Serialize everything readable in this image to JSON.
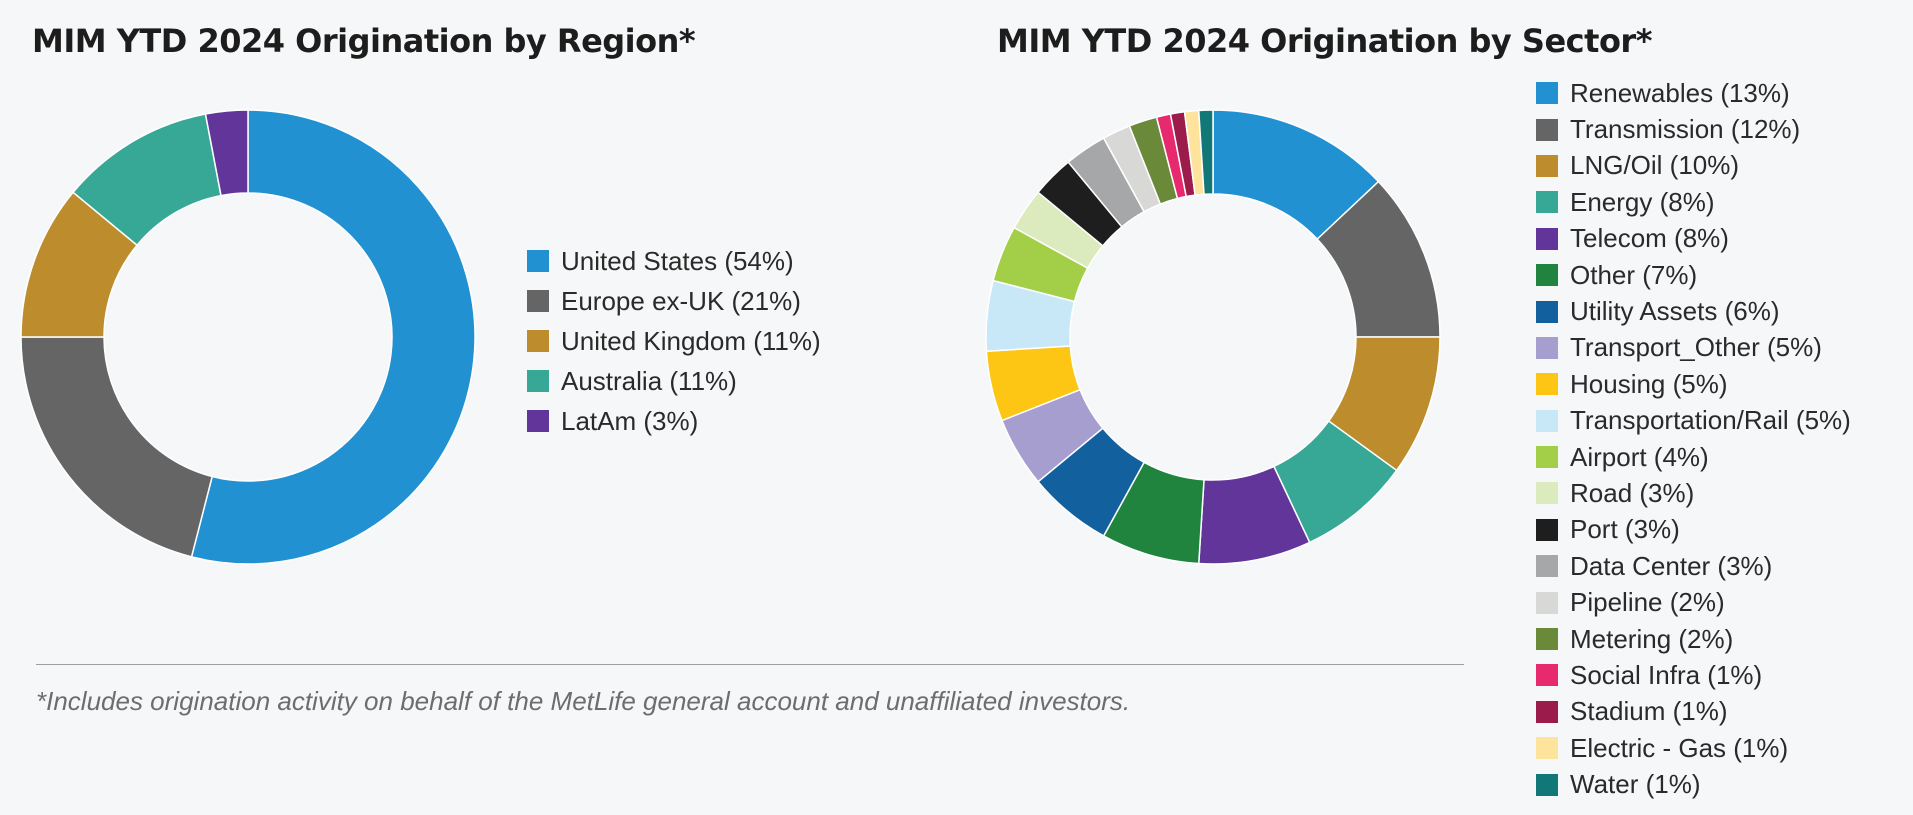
{
  "chart_data": [
    {
      "type": "pie",
      "variant": "donut",
      "title": "MIM YTD 2024 Origination by Region*",
      "legend_position": "right",
      "slices": [
        {
          "label": "United States (54%)",
          "value": 54,
          "color": "#2291d2"
        },
        {
          "label": "Europe ex-UK (21%)",
          "value": 21,
          "color": "#646564"
        },
        {
          "label": "United Kingdom (11%)",
          "value": 11,
          "color": "#bd8c2d"
        },
        {
          "label": "Australia (11%)",
          "value": 11,
          "color": "#37a896"
        },
        {
          "label": "LatAm (3%)",
          "value": 3,
          "color": "#62359a"
        }
      ]
    },
    {
      "type": "pie",
      "variant": "donut",
      "title": "MIM YTD 2024 Origination by Sector*",
      "legend_position": "right",
      "slices": [
        {
          "label": "Renewables (13%)",
          "value": 13,
          "color": "#2291d2"
        },
        {
          "label": "Transmission (12%)",
          "value": 12,
          "color": "#646564"
        },
        {
          "label": "LNG/Oil (10%)",
          "value": 10,
          "color": "#bd8c2d"
        },
        {
          "label": "Energy (8%)",
          "value": 8,
          "color": "#37a896"
        },
        {
          "label": "Telecom (8%)",
          "value": 8,
          "color": "#62359a"
        },
        {
          "label": "Other (7%)",
          "value": 7,
          "color": "#20843f"
        },
        {
          "label": "Utility Assets (6%)",
          "value": 6,
          "color": "#13609f"
        },
        {
          "label": "Transport_Other (5%)",
          "value": 5,
          "color": "#a79ed0"
        },
        {
          "label": "Housing (5%)",
          "value": 5,
          "color": "#fdc614"
        },
        {
          "label": "Transportation/Rail (5%)",
          "value": 5,
          "color": "#c8e8f8"
        },
        {
          "label": "Airport (4%)",
          "value": 4,
          "color": "#a3cf48"
        },
        {
          "label": "Road (3%)",
          "value": 3,
          "color": "#dcebbd"
        },
        {
          "label": "Port (3%)",
          "value": 3,
          "color": "#1e1e1e"
        },
        {
          "label": "Data Center (3%)",
          "value": 3,
          "color": "#a5a7a8"
        },
        {
          "label": "Pipeline (2%)",
          "value": 2,
          "color": "#d8d9d7"
        },
        {
          "label": "Metering (2%)",
          "value": 2,
          "color": "#6a8a3a"
        },
        {
          "label": "Social Infra (1%)",
          "value": 1,
          "color": "#e72a6d"
        },
        {
          "label": "Stadium (1%)",
          "value": 1,
          "color": "#9b1b4a"
        },
        {
          "label": "Electric - Gas (1%)",
          "value": 1,
          "color": "#fde39b"
        },
        {
          "label": "Water (1%)",
          "value": 1,
          "color": "#127777"
        }
      ]
    }
  ],
  "footnote": "*Includes origination activity on behalf of the MetLife general account and unaffiliated investors."
}
